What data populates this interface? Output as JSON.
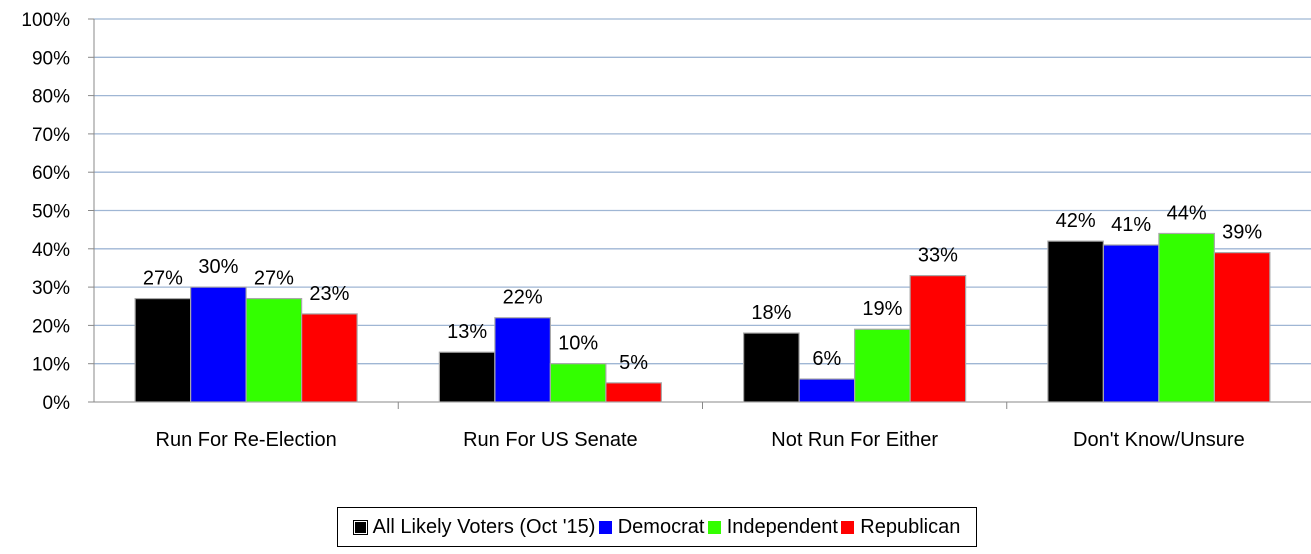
{
  "chart_data": {
    "type": "bar",
    "title": "",
    "xlabel": "",
    "ylabel": "",
    "ylim": [
      0,
      100
    ],
    "yticks": [
      "0%",
      "10%",
      "20%",
      "30%",
      "40%",
      "50%",
      "60%",
      "70%",
      "80%",
      "90%",
      "100%"
    ],
    "grid": "horizontal",
    "legend_position": "bottom",
    "categories": [
      "Run For Re-Election",
      "Run For US Senate",
      "Not Run For Either",
      "Don't Know/Unsure"
    ],
    "series": [
      {
        "name": "All Likely Voters (Oct '15)",
        "color": "#000000",
        "values": [
          27,
          13,
          18,
          42
        ],
        "labels": [
          "27%",
          "13%",
          "18%",
          "42%"
        ]
      },
      {
        "name": "Democrat",
        "color": "#0000ff",
        "values": [
          30,
          22,
          6,
          41
        ],
        "labels": [
          "30%",
          "22%",
          "6%",
          "41%"
        ]
      },
      {
        "name": "Independent",
        "color": "#33ff00",
        "values": [
          27,
          10,
          19,
          44
        ],
        "labels": [
          "27%",
          "10%",
          "19%",
          "44%"
        ]
      },
      {
        "name": "Republican",
        "color": "#ff0000",
        "values": [
          23,
          5,
          33,
          39
        ],
        "labels": [
          "23%",
          "5%",
          "33%",
          "39%"
        ]
      }
    ]
  }
}
